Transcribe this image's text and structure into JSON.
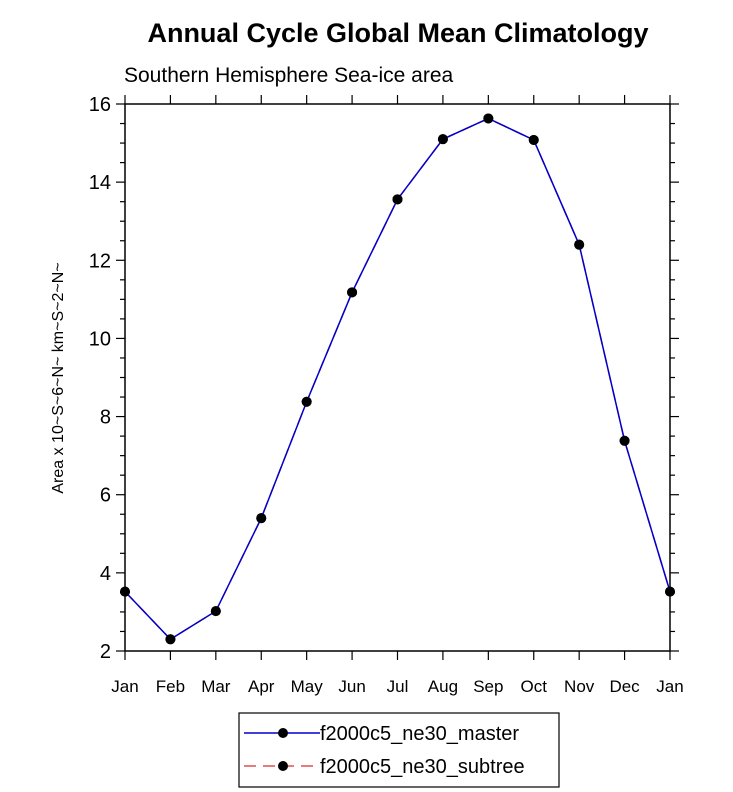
{
  "chart_data": {
    "type": "line",
    "title": "Annual Cycle Global Mean Climatology",
    "subtitle": "Southern Hemisphere Sea-ice area",
    "xlabel": "",
    "ylabel": "Area x 10~S~6~N~ km~S~2~N~",
    "categories": [
      "Jan",
      "Feb",
      "Mar",
      "Apr",
      "May",
      "Jun",
      "Jul",
      "Aug",
      "Sep",
      "Oct",
      "Nov",
      "Dec",
      "Jan"
    ],
    "ylim": [
      2,
      16
    ],
    "yticks": [
      "2",
      "4",
      "6",
      "8",
      "10",
      "12",
      "14",
      "16"
    ],
    "series": [
      {
        "name": "f2000c5_ne30_master",
        "color": "#0000cc",
        "dash": "solid",
        "marker": "filled-circle",
        "values": [
          3.52,
          2.3,
          3.02,
          5.4,
          8.38,
          11.18,
          13.56,
          15.1,
          15.63,
          15.08,
          12.4,
          7.38,
          3.52
        ]
      },
      {
        "name": "f2000c5_ne30_subtree",
        "color": "#e05050",
        "dash": "dashed",
        "marker": "filled-circle",
        "values": [
          3.52,
          2.3,
          3.02,
          5.4,
          8.38,
          11.18,
          13.56,
          15.1,
          15.63,
          15.08,
          12.4,
          7.38,
          3.52
        ]
      }
    ],
    "legend_position": "bottom-center"
  }
}
